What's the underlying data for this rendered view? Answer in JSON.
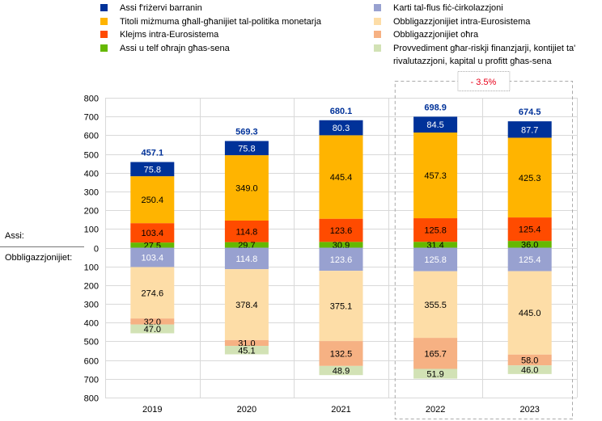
{
  "chart_data": {
    "type": "bar",
    "stacked": true,
    "diverging": true,
    "title": "",
    "categories": [
      "2019",
      "2020",
      "2021",
      "2022",
      "2023"
    ],
    "ylim": [
      -800,
      800
    ],
    "yticks": [
      800,
      700,
      600,
      500,
      400,
      300,
      200,
      100,
      0,
      100,
      200,
      300,
      400,
      500,
      600,
      700,
      800
    ],
    "grid": true,
    "legend_position": "top",
    "side_labels": {
      "assets": "Assi:",
      "liabilities": "Obbligazzjonijiet:"
    },
    "assets_series": [
      {
        "name": "Assi u telf oħrajn għas-sena",
        "color": "#65B800",
        "values": [
          27.5,
          29.7,
          30.9,
          31.4,
          36.0
        ],
        "label_color": "#000000"
      },
      {
        "name": "Klejms intra-Eurosistema",
        "color": "#FF4B00",
        "values": [
          103.4,
          114.8,
          123.6,
          125.8,
          125.4
        ],
        "label_color": "#000000"
      },
      {
        "name": "Titoli miżmuma għall-għanijiet tal-politika monetarja",
        "color": "#FFB400",
        "values": [
          250.4,
          349.0,
          445.4,
          457.3,
          425.3
        ],
        "label_color": "#000000"
      },
      {
        "name": "Assi f'riżervi barranin",
        "color": "#003299",
        "values": [
          75.8,
          75.8,
          80.3,
          84.5,
          87.7
        ],
        "label_color": "#ffffff"
      }
    ],
    "liabilities_series": [
      {
        "name": "Karti tal-flus fiċ-ċirkolazzjoni",
        "color": "#98A1D0",
        "values": [
          103.4,
          114.8,
          123.6,
          125.8,
          125.4
        ],
        "label_color": "#ffffff"
      },
      {
        "name": "Obbligazzjonijiet intra-Eurosistema",
        "color": "#FDDDA7",
        "values": [
          274.6,
          378.4,
          375.1,
          355.5,
          445.0
        ],
        "label_color": "#000000"
      },
      {
        "name": "Obbligazzjonijiet oħra",
        "color": "#F6B183",
        "values": [
          32.0,
          31.0,
          132.5,
          165.7,
          58.0
        ],
        "label_color": "#000000"
      },
      {
        "name": "Provvediment għar-riskji finanzjarji, kontijiet ta' rivalutazzjoni, kapital u profitt għas-sena",
        "color": "#D2E2B5",
        "values": [
          47.0,
          45.1,
          48.9,
          51.9,
          46.0
        ],
        "label_color": "#000000"
      }
    ],
    "totals": [
      "457.1",
      "569.3",
      "680.1",
      "698.9",
      "674.5"
    ],
    "total_color": "#003299",
    "annotation": {
      "text": "- 3.5%",
      "color": "#E8001A",
      "spans": [
        "2022",
        "2023"
      ]
    }
  },
  "legend": {
    "left": [
      {
        "label": "Assi f'riżervi barranin",
        "color": "#003299"
      },
      {
        "label": "Titoli miżmuma għall-għanijiet tal-politika monetarja",
        "color": "#FFB400"
      },
      {
        "label": "Klejms intra-Eurosistema",
        "color": "#FF4B00"
      },
      {
        "label": "Assi u telf oħrajn għas-sena",
        "color": "#65B800"
      }
    ],
    "right": [
      {
        "label": "Karti tal-flus fiċ-ċirkolazzjoni",
        "color": "#98A1D0"
      },
      {
        "label": "Obbligazzjonijiet intra-Eurosistema",
        "color": "#FDDDA7"
      },
      {
        "label": "Obbligazzjonijiet oħra",
        "color": "#F6B183"
      },
      {
        "label": "Provvediment għar-riskji finanzjarji, kontijiet ta' rivalutazzjoni, kapital u profitt għas-sena",
        "color": "#D2E2B5"
      }
    ]
  }
}
